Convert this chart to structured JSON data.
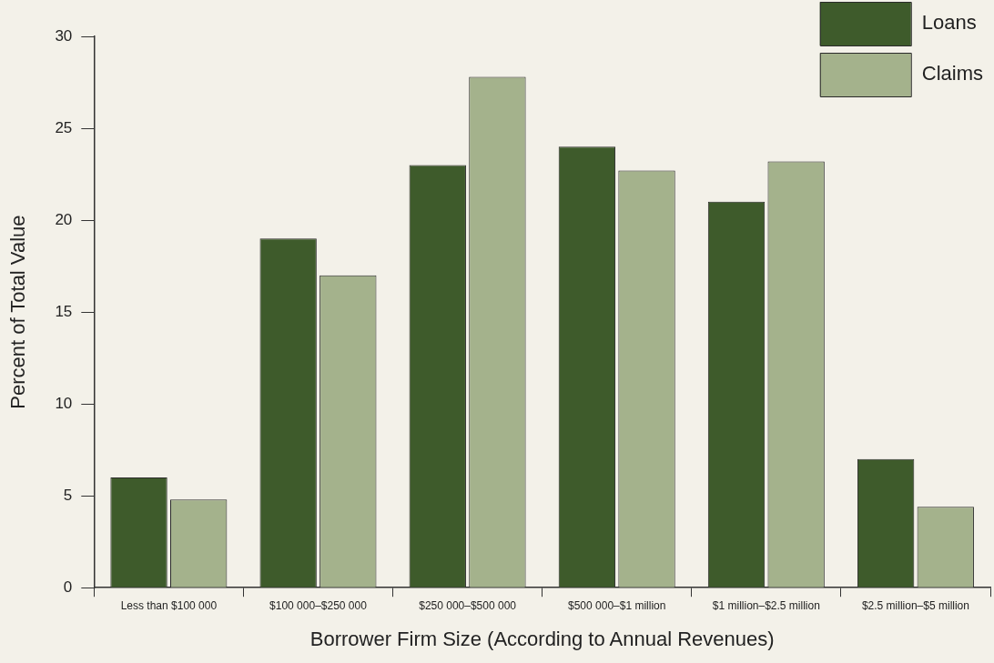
{
  "chart_data": {
    "type": "bar",
    "xlabel": "Borrower Firm Size (According to Annual Revenues)",
    "ylabel": "Percent of Total Value",
    "categories": [
      "Less than $100 000",
      "$100 000–$250 000",
      "$250 000–$500 000",
      "$500 000–$1 million",
      "$1 million–$2.5 million",
      "$2.5 million–$5 million"
    ],
    "series": [
      {
        "name": "Loans",
        "color": "#3e5b2b",
        "values": [
          6,
          19,
          23,
          24,
          21,
          7
        ]
      },
      {
        "name": "Claims",
        "color": "#a4b28c",
        "values": [
          4.8,
          17,
          27.8,
          22.7,
          23.2,
          4.4
        ]
      }
    ],
    "ylim": [
      0,
      30
    ],
    "yticks": [
      0,
      5,
      10,
      15,
      20,
      25,
      30
    ],
    "grid": false,
    "legend": "top right"
  }
}
